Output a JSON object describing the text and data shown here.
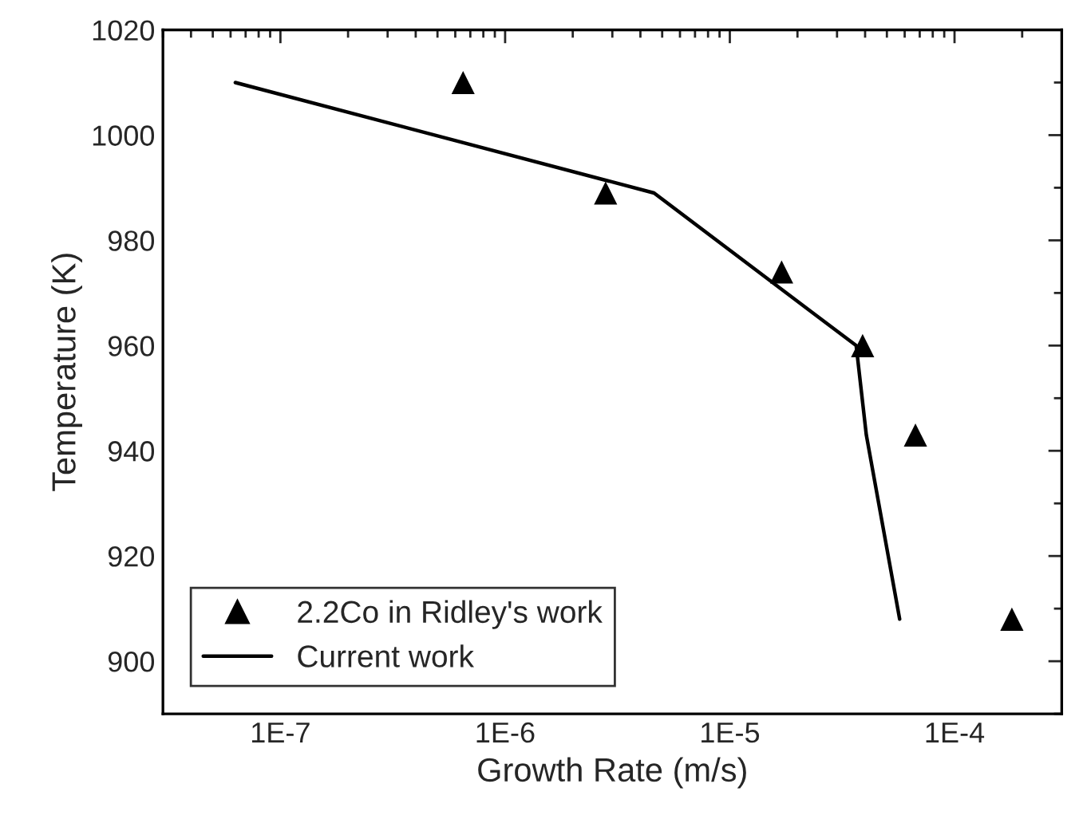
{
  "chart_data": {
    "type": "scatter",
    "xlabel": "Growth Rate (m/s)",
    "ylabel": "Temperature (K)",
    "log": "x",
    "xlim": [
      3e-08,
      0.0003
    ],
    "xticks": [
      {
        "value": 1e-07,
        "label": "1E-7"
      },
      {
        "value": 1e-06,
        "label": "1E-6"
      },
      {
        "value": 1e-05,
        "label": "1E-5"
      },
      {
        "value": 0.0001,
        "label": "1E-4"
      }
    ],
    "ylim": [
      890,
      1020
    ],
    "yticks": [
      900,
      920,
      940,
      960,
      980,
      1000,
      1020
    ],
    "legend": "bottom left",
    "grid": false,
    "series": [
      {
        "name": "2.2Co in Ridley's work",
        "marker": "triangle",
        "color": "#000000",
        "x": [
          6.5e-07,
          2.8e-06,
          1.7e-05,
          3.9e-05,
          6.7e-05,
          0.00018
        ],
        "values": [
          1010,
          989,
          974,
          960,
          943,
          908
        ]
      },
      {
        "name": "Current work",
        "type": "line",
        "marker": "none",
        "line_style": "solid",
        "color": "#000000",
        "x": [
          6.3e-08,
          4.6e-06,
          3.65e-05,
          4.05e-05,
          5.7e-05
        ],
        "values": [
          1010,
          989,
          960,
          943,
          908
        ]
      }
    ]
  }
}
